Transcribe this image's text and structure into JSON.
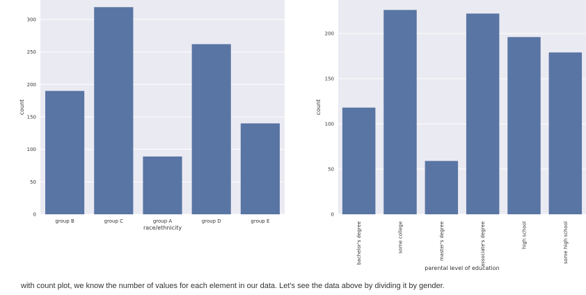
{
  "chart_data": [
    {
      "type": "bar",
      "xlabel": "race/ethnicity",
      "ylabel": "count",
      "categories": [
        "group B",
        "group C",
        "group A",
        "group D",
        "group E"
      ],
      "values": [
        190,
        319,
        89,
        262,
        140
      ],
      "ylim": [
        0,
        330
      ],
      "yticks": [
        0,
        50,
        100,
        150,
        200,
        250,
        300
      ],
      "grid": true,
      "colors": {
        "bar": "#5975a4",
        "background": "#eaeaf2",
        "grid": "#ffffff"
      }
    },
    {
      "type": "bar",
      "xlabel": "parental level of education",
      "ylabel": "count",
      "categories": [
        "bachelor's degree",
        "some college",
        "master's degree",
        "associate's degree",
        "high school",
        "some high school"
      ],
      "values": [
        118,
        226,
        59,
        222,
        196,
        179
      ],
      "ylim": [
        0,
        237
      ],
      "yticks": [
        0,
        50,
        100,
        150,
        200
      ],
      "grid": true,
      "colors": {
        "bar": "#5975a4",
        "background": "#eaeaf2",
        "grid": "#ffffff"
      }
    }
  ],
  "caption": "with count plot, we know the number of values for each element in our data. Let's see the data above by dividing it by gender."
}
